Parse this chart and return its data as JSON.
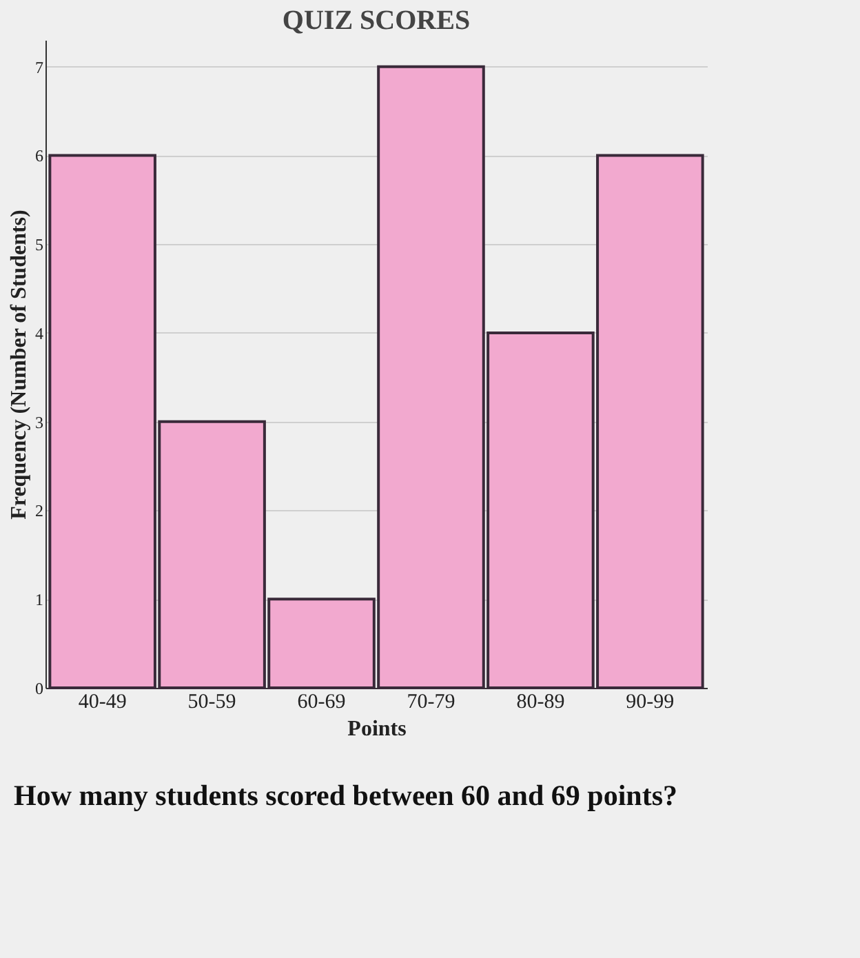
{
  "chart_data": {
    "type": "bar",
    "title": "QUIZ SCORES",
    "xlabel": "Points",
    "ylabel": "Frequency (Number of Students)",
    "categories": [
      "40-49",
      "50-59",
      "60-69",
      "70-79",
      "80-89",
      "90-99"
    ],
    "values": [
      6,
      3,
      1,
      7,
      4,
      6
    ],
    "color": "#f2a9cf",
    "ylim": [
      0,
      7.3
    ],
    "yticks": [
      0,
      1,
      2,
      3,
      4,
      5,
      6,
      7
    ],
    "grid": "y",
    "annotations": [
      "How many students scored between 60 and 69 points?"
    ]
  }
}
